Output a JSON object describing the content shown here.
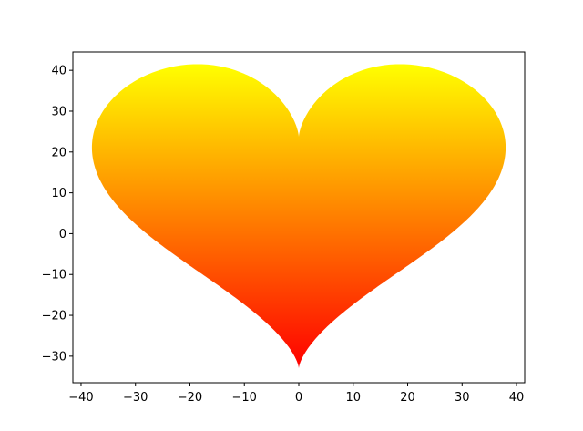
{
  "chart_data": {
    "type": "scatter",
    "title": "",
    "xlabel": "",
    "ylabel": "",
    "xlim": [
      -41.5,
      41.5
    ],
    "ylim": [
      -36.5,
      44.5
    ],
    "xticks": [
      -40,
      -30,
      -20,
      -10,
      0,
      10,
      20,
      30,
      40
    ],
    "yticks": [
      -30,
      -20,
      -10,
      0,
      10,
      20,
      30,
      40
    ],
    "xtick_labels": [
      "−40",
      "−30",
      "−20",
      "−10",
      "0",
      "10",
      "20",
      "30",
      "40"
    ],
    "ytick_labels": [
      "−30",
      "−20",
      "−10",
      "0",
      "10",
      "20",
      "30",
      "40"
    ],
    "grid": false,
    "legend": "none",
    "series": [
      {
        "shape": "heart",
        "x_range": [
          -38,
          38
        ],
        "y_range": [
          -33,
          41.5
        ],
        "colormap": "autumn",
        "color_low": "#ff0000",
        "color_high": "#ffff00"
      }
    ]
  }
}
